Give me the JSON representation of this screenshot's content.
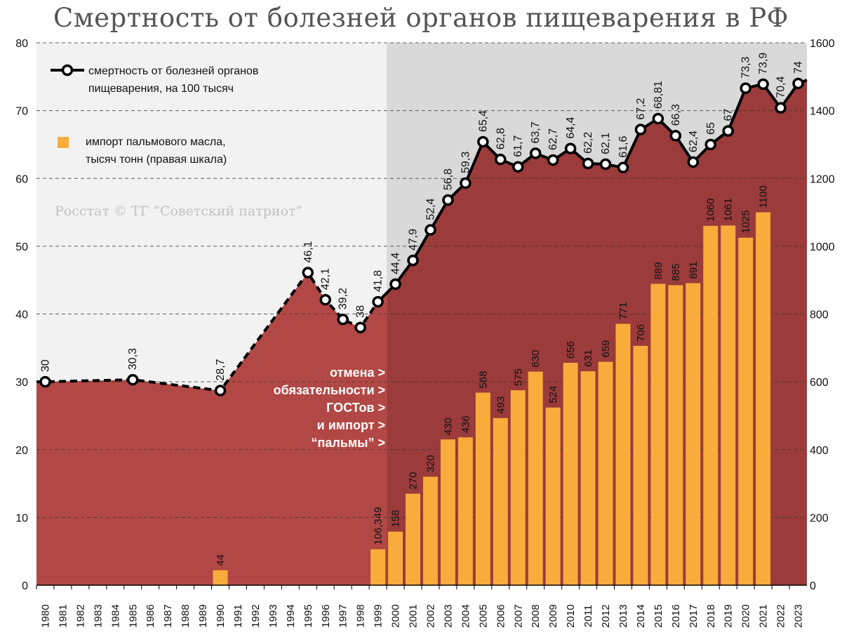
{
  "chart_data": {
    "type": "line+bar",
    "title": "Смертность от болезней органов пищеварения в РФ",
    "credit": "Росстат © ТГ “Советский патриот”",
    "left_axis": {
      "min": 0,
      "max": 80,
      "ticks": [
        "0",
        "10",
        "20",
        "30",
        "40",
        "50",
        "60",
        "70",
        "80"
      ]
    },
    "right_axis": {
      "min": 0,
      "max": 1600,
      "ticks": [
        "0",
        "200",
        "400",
        "600",
        "800",
        "1000",
        "1200",
        "1400",
        "1600"
      ]
    },
    "years": [
      "1980",
      "1981",
      "1982",
      "1983",
      "1984",
      "1985",
      "1986",
      "1987",
      "1988",
      "1989",
      "1990",
      "1991",
      "1992",
      "1993",
      "1994",
      "1995",
      "1996",
      "1997",
      "1998",
      "1999",
      "2000",
      "2001",
      "2002",
      "2003",
      "2004",
      "2005",
      "2006",
      "2007",
      "2008",
      "2009",
      "2010",
      "2011",
      "2012",
      "2013",
      "2014",
      "2015",
      "2016",
      "2017",
      "2018",
      "2019",
      "2020",
      "2021",
      "2022",
      "2023"
    ],
    "mortality_series": {
      "name": "смертность от болезней органов пищеварения, на 100 тысяч",
      "points": [
        {
          "year": "1980",
          "value": 30,
          "label": "30"
        },
        {
          "year": "1985",
          "value": 30.3,
          "label": "30,3"
        },
        {
          "year": "1990",
          "value": 28.7,
          "label": "28,7"
        },
        {
          "year": "1995",
          "value": 46.1,
          "label": "46,1"
        },
        {
          "year": "1996",
          "value": 42.1,
          "label": "42,1"
        },
        {
          "year": "1997",
          "value": 39.2,
          "label": "39,2"
        },
        {
          "year": "1998",
          "value": 38,
          "label": "38"
        },
        {
          "year": "1999",
          "value": 41.8,
          "label": "41,8"
        },
        {
          "year": "2000",
          "value": 44.4,
          "label": "44,4"
        },
        {
          "year": "2001",
          "value": 47.9,
          "label": "47,9"
        },
        {
          "year": "2002",
          "value": 52.4,
          "label": "52,4"
        },
        {
          "year": "2003",
          "value": 56.8,
          "label": "56,8"
        },
        {
          "year": "2004",
          "value": 59.3,
          "label": "59,3"
        },
        {
          "year": "2005",
          "value": 65.4,
          "label": "65,4"
        },
        {
          "year": "2006",
          "value": 62.8,
          "label": "62,8"
        },
        {
          "year": "2007",
          "value": 61.7,
          "label": "61,7"
        },
        {
          "year": "2008",
          "value": 63.7,
          "label": "63,7"
        },
        {
          "year": "2009",
          "value": 62.7,
          "label": "62,7"
        },
        {
          "year": "2010",
          "value": 64.4,
          "label": "64,4"
        },
        {
          "year": "2011",
          "value": 62.2,
          "label": "62,2"
        },
        {
          "year": "2012",
          "value": 62.1,
          "label": "62,1"
        },
        {
          "year": "2013",
          "value": 61.6,
          "label": "61,6"
        },
        {
          "year": "2014",
          "value": 67.2,
          "label": "67,2"
        },
        {
          "year": "2015",
          "value": 68.81,
          "label": "68,81"
        },
        {
          "year": "2016",
          "value": 66.3,
          "label": "66,3"
        },
        {
          "year": "2017",
          "value": 62.4,
          "label": "62,4"
        },
        {
          "year": "2018",
          "value": 65,
          "label": "65"
        },
        {
          "year": "2019",
          "value": 67,
          "label": "67"
        },
        {
          "year": "2020",
          "value": 73.3,
          "label": "73,3"
        },
        {
          "year": "2021",
          "value": 73.9,
          "label": "73,9"
        },
        {
          "year": "2022",
          "value": 70.4,
          "label": "70,4"
        },
        {
          "year": "2023",
          "value": 74,
          "label": "74"
        }
      ],
      "trailing_value": 74.5
    },
    "import_series": {
      "name": "импорт пальмового масла, тысяч тонн (правая шкала)",
      "bars": [
        {
          "year": "1990",
          "value": 44,
          "label": "44"
        },
        {
          "year": "1999",
          "value": 106,
          "label": "106,349"
        },
        {
          "year": "2000",
          "value": 158,
          "label": "158"
        },
        {
          "year": "2001",
          "value": 270,
          "label": "270"
        },
        {
          "year": "2002",
          "value": 320,
          "label": "320"
        },
        {
          "year": "2003",
          "value": 430,
          "label": "430"
        },
        {
          "year": "2004",
          "value": 436,
          "label": "436"
        },
        {
          "year": "2005",
          "value": 568,
          "label": "568"
        },
        {
          "year": "2006",
          "value": 493,
          "label": "493"
        },
        {
          "year": "2007",
          "value": 575,
          "label": "575"
        },
        {
          "year": "2008",
          "value": 630,
          "label": "630"
        },
        {
          "year": "2009",
          "value": 524,
          "label": "524"
        },
        {
          "year": "2010",
          "value": 656,
          "label": "656"
        },
        {
          "year": "2011",
          "value": 631,
          "label": "631"
        },
        {
          "year": "2012",
          "value": 659,
          "label": "659"
        },
        {
          "year": "2013",
          "value": 771,
          "label": "771"
        },
        {
          "year": "2014",
          "value": 706,
          "label": "706"
        },
        {
          "year": "2015",
          "value": 889,
          "label": "889"
        },
        {
          "year": "2016",
          "value": 885,
          "label": "885"
        },
        {
          "year": "2017",
          "value": 891,
          "label": "891"
        },
        {
          "year": "2018",
          "value": 1060,
          "label": "1060"
        },
        {
          "year": "2019",
          "value": 1061,
          "label": "1061"
        },
        {
          "year": "2020",
          "value": 1025,
          "label": "1025"
        },
        {
          "year": "2021",
          "value": 1100,
          "label": "1100"
        }
      ]
    },
    "annotation_lines": [
      "отмена >",
      "обязательности >",
      "ГОСТов >",
      "и импорт >",
      "“пальмы” >"
    ],
    "legend": {
      "line_label_1": "смертность от болезней органов",
      "line_label_2": "пищеварения, на 100 тысяч",
      "bar_label_1": "импорт пальмового масла,",
      "bar_label_2": "тысяч тонн (правая шкала)"
    },
    "colors": {
      "area_before_2000": "#b24845",
      "area_after_2000": "#9b3b3b",
      "bg_before_2000": "#f2f2f2",
      "bg_after_2000": "#d9d9d9",
      "bar": "#f9ac3b",
      "line": "#000000",
      "grid": "#3a3a3a",
      "annotation": "#ffffff"
    }
  }
}
